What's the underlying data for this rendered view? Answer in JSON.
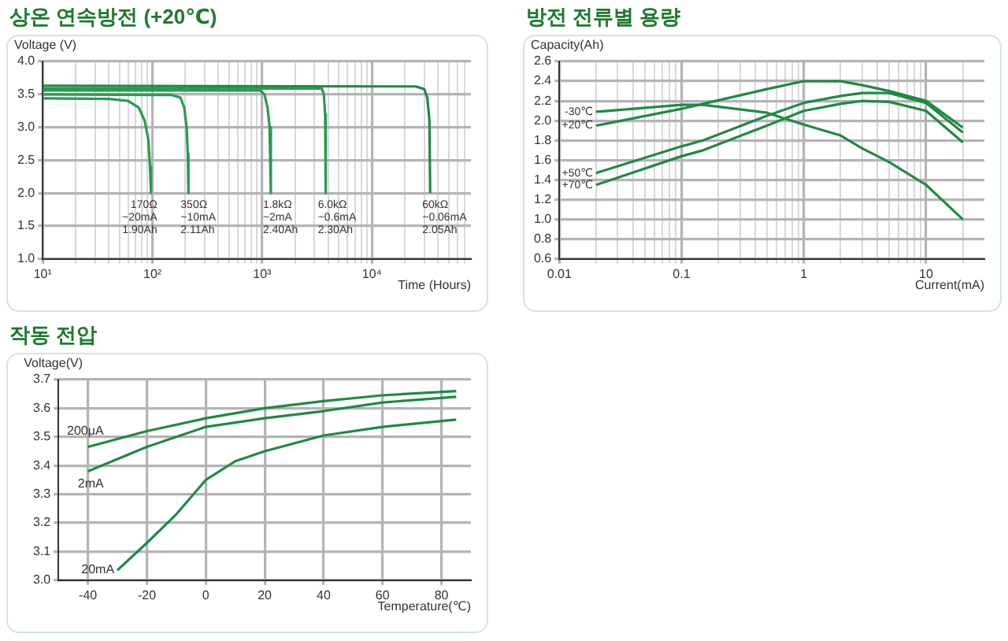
{
  "chart_data": [
    {
      "type": "line",
      "title": "상온 연속방전 (+20℃)",
      "xlabel": "Time (Hours)",
      "ylabel": "Voltage (V)",
      "log": "x",
      "grid": true,
      "legend": false,
      "xlim": [
        10,
        80000
      ],
      "ylim": [
        1,
        4
      ],
      "xticks": [
        {
          "value": 10,
          "label": "10¹"
        },
        {
          "value": 20,
          "label": null
        },
        {
          "value": 30,
          "label": null
        },
        {
          "value": 40,
          "label": null
        },
        {
          "value": 50,
          "label": null
        },
        {
          "value": 60,
          "label": null
        },
        {
          "value": 70,
          "label": null
        },
        {
          "value": 80,
          "label": null
        },
        {
          "value": 90,
          "label": null
        },
        {
          "value": 100,
          "label": "10²"
        },
        {
          "value": 200,
          "label": null
        },
        {
          "value": 300,
          "label": null
        },
        {
          "value": 400,
          "label": null
        },
        {
          "value": 500,
          "label": null
        },
        {
          "value": 600,
          "label": null
        },
        {
          "value": 700,
          "label": null
        },
        {
          "value": 800,
          "label": null
        },
        {
          "value": 900,
          "label": null
        },
        {
          "value": 1000,
          "label": "10³"
        },
        {
          "value": 2000,
          "label": null
        },
        {
          "value": 3000,
          "label": null
        },
        {
          "value": 4000,
          "label": null
        },
        {
          "value": 5000,
          "label": null
        },
        {
          "value": 6000,
          "label": null
        },
        {
          "value": 7000,
          "label": null
        },
        {
          "value": 8000,
          "label": null
        },
        {
          "value": 9000,
          "label": null
        },
        {
          "value": 10000,
          "label": "10⁴"
        },
        {
          "value": 20000,
          "label": null
        },
        {
          "value": 30000,
          "label": null
        },
        {
          "value": 40000,
          "label": null
        },
        {
          "value": 50000,
          "label": null
        },
        {
          "value": 60000,
          "label": null
        },
        {
          "value": 70000,
          "label": null
        }
      ],
      "yticks": [
        {
          "value": 1,
          "label": "1.0"
        },
        1.5,
        {
          "value": 2,
          "label": "2.0"
        },
        2.5,
        {
          "value": 3,
          "label": "3.0"
        },
        3.5,
        {
          "value": 4,
          "label": "4.0"
        }
      ],
      "series": [
        {
          "name": "170Ω\n~20mA\n1.90Ah",
          "color": "#2a9a52",
          "x": [
            10,
            40,
            60,
            75,
            85,
            92,
            95,
            97
          ],
          "values": [
            3.44,
            3.43,
            3.4,
            3.3,
            3.1,
            2.8,
            2.4,
            2.0
          ]
        },
        {
          "name": "350Ω\n~10mA\n2.11Ah",
          "color": "#2a9a52",
          "x": [
            10,
            150,
            180,
            195,
            205,
            210,
            213
          ],
          "values": [
            3.5,
            3.49,
            3.45,
            3.3,
            3.0,
            2.6,
            2.0
          ]
        },
        {
          "name": "1.8kΩ\n~2mA\n2.40Ah",
          "color": "#2a9a52",
          "x": [
            10,
            950,
            1050,
            1120,
            1170,
            1200
          ],
          "values": [
            3.56,
            3.56,
            3.5,
            3.3,
            3.0,
            2.0
          ]
        },
        {
          "name": "6.0kΩ\n~0.6mA\n2.30Ah",
          "color": "#2a9a52",
          "x": [
            10,
            3500,
            3650,
            3750,
            3800
          ],
          "values": [
            3.59,
            3.59,
            3.5,
            3.2,
            2.0
          ]
        },
        {
          "name": "60kΩ\n~0.06mA\n2.05Ah",
          "color": "#1f8a45",
          "x": [
            10,
            25000,
            30000,
            32000,
            33500,
            34000
          ],
          "values": [
            3.63,
            3.62,
            3.58,
            3.45,
            3.1,
            2.0
          ]
        }
      ]
    },
    {
      "type": "line",
      "title": "방전 전류별 용량",
      "xlabel": "Current(mA)",
      "ylabel": "Capacity(Ah)",
      "log": "x",
      "grid": true,
      "legend": false,
      "xlim": [
        0.01,
        30
      ],
      "ylim": [
        0.6,
        2.6
      ],
      "xticks": [
        0.01,
        {
          "value": 0.02,
          "label": null
        },
        {
          "value": 0.03,
          "label": null
        },
        {
          "value": 0.04,
          "label": null
        },
        {
          "value": 0.05,
          "label": null
        },
        {
          "value": 0.06,
          "label": null
        },
        {
          "value": 0.07,
          "label": null
        },
        {
          "value": 0.08,
          "label": null
        },
        {
          "value": 0.09,
          "label": null
        },
        0.1,
        {
          "value": 0.2,
          "label": null
        },
        {
          "value": 0.3,
          "label": null
        },
        {
          "value": 0.4,
          "label": null
        },
        {
          "value": 0.5,
          "label": null
        },
        {
          "value": 0.6,
          "label": null
        },
        {
          "value": 0.7,
          "label": null
        },
        {
          "value": 0.8,
          "label": null
        },
        {
          "value": 0.9,
          "label": null
        },
        1,
        {
          "value": 2,
          "label": null
        },
        {
          "value": 3,
          "label": null
        },
        {
          "value": 4,
          "label": null
        },
        {
          "value": 5,
          "label": null
        },
        {
          "value": 6,
          "label": null
        },
        {
          "value": 7,
          "label": null
        },
        {
          "value": 8,
          "label": null
        },
        {
          "value": 9,
          "label": null
        },
        10,
        {
          "value": 20,
          "label": null
        }
      ],
      "yticks": [
        0.6,
        0.8,
        {
          "value": 1,
          "label": "1.0"
        },
        1.2,
        1.4,
        1.6,
        1.8,
        {
          "value": 2,
          "label": "2.0"
        },
        2.2,
        2.4,
        2.6
      ],
      "x": [
        0.02,
        0.1,
        0.15,
        0.5,
        1,
        2,
        3,
        5,
        10,
        20
      ],
      "series": [
        {
          "name": "-30℃",
          "color": "#1f8a45",
          "values": [
            2.09,
            2.16,
            2.16,
            2.08,
            1.96,
            1.85,
            1.72,
            1.58,
            1.35,
            1.0
          ]
        },
        {
          "name": "+20℃",
          "color": "#1f8a45",
          "values": [
            1.95,
            2.12,
            2.17,
            2.32,
            2.4,
            2.4,
            2.36,
            2.3,
            2.2,
            1.93
          ]
        },
        {
          "name": "+50℃",
          "color": "#1f8a45",
          "values": [
            1.47,
            1.74,
            1.8,
            2.05,
            2.18,
            2.25,
            2.28,
            2.28,
            2.18,
            1.88
          ]
        },
        {
          "name": "+70℃",
          "color": "#1f8a45",
          "values": [
            1.35,
            1.64,
            1.7,
            1.95,
            2.1,
            2.17,
            2.2,
            2.19,
            2.1,
            1.78
          ]
        }
      ]
    },
    {
      "type": "line",
      "title": "작동 전압",
      "xlabel": "Temperature(℃)",
      "ylabel": "Voltage(V)",
      "grid": true,
      "legend": false,
      "xlim": [
        -50,
        90
      ],
      "ylim": [
        3.0,
        3.7
      ],
      "xticks": [
        -40,
        -20,
        0,
        20,
        40,
        60,
        80
      ],
      "yticks": [
        {
          "value": 3,
          "label": "3.0"
        },
        3.1,
        3.2,
        3.3,
        3.4,
        3.5,
        3.6,
        3.7
      ],
      "series": [
        {
          "name": "200μA",
          "color": "#1f8a45",
          "x": [
            -40,
            -20,
            0,
            20,
            40,
            60,
            85
          ],
          "values": [
            3.465,
            3.52,
            3.565,
            3.6,
            3.625,
            3.645,
            3.66
          ]
        },
        {
          "name": "2mA",
          "color": "#1f8a45",
          "x": [
            -40,
            -20,
            0,
            20,
            40,
            60,
            85
          ],
          "values": [
            3.38,
            3.465,
            3.535,
            3.565,
            3.59,
            3.62,
            3.64
          ]
        },
        {
          "name": "20mA",
          "color": "#1f8a45",
          "x": [
            -30,
            -20,
            -10,
            0,
            10,
            20,
            40,
            60,
            85
          ],
          "values": [
            3.035,
            3.13,
            3.23,
            3.35,
            3.415,
            3.45,
            3.505,
            3.535,
            3.56
          ]
        }
      ]
    }
  ]
}
